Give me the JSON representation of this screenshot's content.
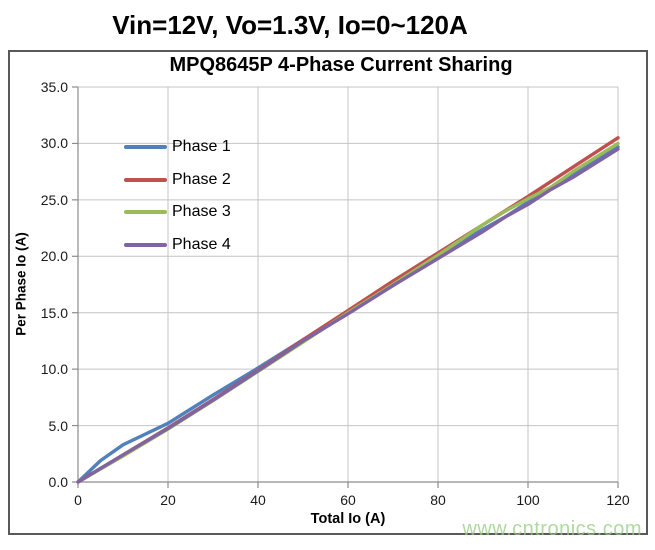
{
  "page": {
    "header_title": "Vin=12V, Vo=1.3V, Io=0~120A",
    "watermark": "www.cntronics.com"
  },
  "colors": {
    "grid": "#C4C4C4",
    "axis": "#8C8C8C",
    "chart_border": "#595959",
    "watermark": "#A9D49B"
  },
  "chart_data": {
    "type": "line",
    "title": "MPQ8645P 4-Phase Current Sharing",
    "xlabel": "Total Io (A)",
    "ylabel": "Per Phase Io (A)",
    "xlim": [
      0,
      120
    ],
    "ylim": [
      0,
      35
    ],
    "grid": true,
    "legend_position": "top-left-inside",
    "x_ticks": [
      0,
      20,
      40,
      60,
      80,
      100,
      120
    ],
    "x_tick_labels": [
      "0",
      "20",
      "40",
      "60",
      "80",
      "100",
      "120"
    ],
    "y_ticks": [
      0,
      5,
      10,
      15,
      20,
      25,
      30,
      35
    ],
    "y_tick_labels": [
      "0.0",
      "5.0",
      "10.0",
      "15.0",
      "20.0",
      "25.0",
      "30.0",
      "35.0"
    ],
    "series": [
      {
        "name": "Phase 1",
        "color": "#4F81BD",
        "points": [
          [
            0,
            0
          ],
          [
            5,
            1.9
          ],
          [
            10,
            3.3
          ],
          [
            20,
            5.2
          ],
          [
            30,
            7.7
          ],
          [
            40,
            10.1
          ],
          [
            50,
            12.6
          ],
          [
            60,
            15.0
          ],
          [
            70,
            17.4
          ],
          [
            80,
            20.0
          ],
          [
            90,
            22.4
          ],
          [
            95,
            23.5
          ],
          [
            100,
            24.8
          ],
          [
            110,
            27.2
          ],
          [
            120,
            29.7
          ]
        ]
      },
      {
        "name": "Phase 2",
        "color": "#C0504D",
        "points": [
          [
            0,
            0
          ],
          [
            10,
            2.4
          ],
          [
            20,
            4.8
          ],
          [
            30,
            7.3
          ],
          [
            40,
            9.9
          ],
          [
            50,
            12.6
          ],
          [
            60,
            15.2
          ],
          [
            70,
            17.8
          ],
          [
            80,
            20.3
          ],
          [
            90,
            22.8
          ],
          [
            100,
            25.3
          ],
          [
            110,
            27.9
          ],
          [
            120,
            30.5
          ]
        ]
      },
      {
        "name": "Phase 3",
        "color": "#9BBB59",
        "points": [
          [
            0,
            0
          ],
          [
            10,
            2.3
          ],
          [
            20,
            4.7
          ],
          [
            30,
            7.2
          ],
          [
            40,
            9.8
          ],
          [
            50,
            12.4
          ],
          [
            60,
            15.0
          ],
          [
            70,
            17.5
          ],
          [
            80,
            20.1
          ],
          [
            90,
            22.8
          ],
          [
            95,
            24.0
          ],
          [
            100,
            25.1
          ],
          [
            105,
            26.1
          ],
          [
            110,
            27.5
          ],
          [
            120,
            30.0
          ]
        ]
      },
      {
        "name": "Phase 4",
        "color": "#8064A2",
        "points": [
          [
            0,
            0
          ],
          [
            10,
            2.4
          ],
          [
            20,
            4.75
          ],
          [
            30,
            7.25
          ],
          [
            40,
            9.85
          ],
          [
            50,
            12.5
          ],
          [
            60,
            14.9
          ],
          [
            70,
            17.4
          ],
          [
            80,
            19.8
          ],
          [
            90,
            22.2
          ],
          [
            95,
            23.5
          ],
          [
            100,
            24.6
          ],
          [
            105,
            25.9
          ],
          [
            110,
            27.0
          ],
          [
            120,
            29.5
          ]
        ]
      }
    ]
  }
}
